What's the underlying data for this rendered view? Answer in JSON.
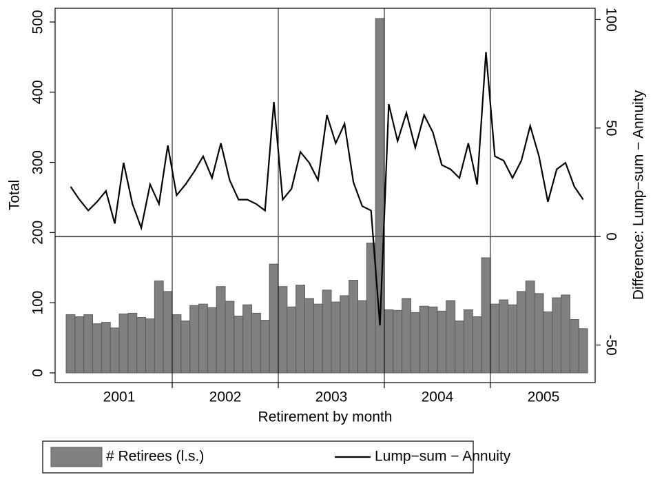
{
  "chart_data": {
    "type": "bar-line",
    "x_label": "Retirement by month",
    "y_label": "Total",
    "y2_label": "Difference: Lump−sum − Annuity",
    "x": [
      1,
      2,
      3,
      4,
      5,
      6,
      7,
      8,
      9,
      10,
      11,
      12,
      13,
      14,
      15,
      16,
      17,
      18,
      19,
      20,
      21,
      22,
      23,
      24,
      25,
      26,
      27,
      28,
      29,
      30,
      31,
      32,
      33,
      34,
      35,
      36,
      37,
      38,
      39,
      40,
      41,
      42,
      43,
      44,
      45,
      46,
      47,
      48,
      49,
      50,
      51,
      52,
      53,
      54,
      55,
      56,
      57,
      58,
      59
    ],
    "xlim": [
      -0.75,
      60.35
    ],
    "xticks": [
      {
        "value": 6.5,
        "label": "2001"
      },
      {
        "value": 18.5,
        "label": "2002"
      },
      {
        "value": 30.5,
        "label": "2003"
      },
      {
        "value": 42.5,
        "label": "2004"
      },
      {
        "value": 54.5,
        "label": "2005"
      }
    ],
    "xgrid": [
      12.5,
      24.5,
      36.5,
      48.5
    ],
    "ylim": [
      -13.8,
      519.6
    ],
    "yticks": [
      0,
      100,
      200,
      300,
      400,
      500
    ],
    "y2lim": [
      -67.3,
      105.2
    ],
    "y2ticks": [
      -50,
      0,
      50,
      100
    ],
    "y2_zero_line": true,
    "series": [
      {
        "name": "# Retirees (l.s.)",
        "type": "bar",
        "axis": "y",
        "color": "#808080",
        "values": [
          83,
          80,
          83,
          70,
          72,
          64,
          84,
          85,
          79,
          77,
          131,
          116,
          83,
          74,
          96,
          98,
          93,
          123,
          102,
          81,
          97,
          85,
          75,
          155,
          123,
          94,
          125,
          106,
          98,
          118,
          101,
          110,
          132,
          103,
          185,
          505,
          90,
          89,
          106,
          86,
          95,
          94,
          88,
          103,
          74,
          90,
          80,
          164,
          98,
          104,
          97,
          116,
          131,
          113,
          87,
          107,
          111,
          76,
          63
        ]
      },
      {
        "name": "Lump−sum − Annuity",
        "type": "line",
        "axis": "y2",
        "color": "#000000",
        "values": [
          23,
          17,
          12,
          16,
          21,
          6,
          34,
          15,
          4,
          24,
          15,
          42,
          19,
          24,
          30,
          37,
          27,
          43,
          26,
          17,
          17,
          15,
          12,
          62,
          17,
          22,
          39,
          34,
          26,
          56,
          43,
          52,
          25,
          14,
          12,
          -41,
          61,
          44,
          57,
          41,
          56,
          48,
          33,
          31,
          27,
          43,
          24,
          85,
          37,
          35,
          27,
          35,
          51,
          37,
          16,
          31,
          34,
          23,
          17
        ]
      }
    ]
  }
}
